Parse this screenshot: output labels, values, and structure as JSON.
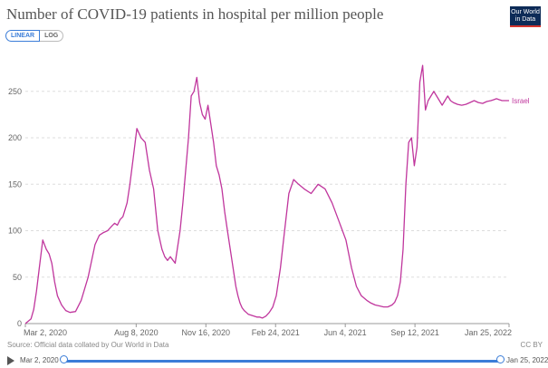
{
  "header": {
    "title": "Number of COVID-19 patients in hospital per million people",
    "logo_line1": "Our World",
    "logo_line2": "in Data"
  },
  "toggle": {
    "linear": "LINEAR",
    "log": "LOG"
  },
  "footer": {
    "source": "Source: Official data collated by Our World in Data",
    "license": "CC BY"
  },
  "timeline": {
    "start": "Mar 2, 2020",
    "end": "Jan 25, 2022"
  },
  "colors": {
    "series": "#c0369d",
    "accent": "#3b7dd8",
    "grid": "#dddddd"
  },
  "chart_data": {
    "type": "line",
    "title": "Number of COVID-19 patients in hospital per million people",
    "ylim": [
      0,
      280
    ],
    "yticks": [
      0,
      50,
      100,
      150,
      200,
      250
    ],
    "xticks": [
      {
        "label": "Mar 2, 2020",
        "t": 0
      },
      {
        "label": "Aug 8, 2020",
        "t": 159
      },
      {
        "label": "Nov 16, 2020",
        "t": 259
      },
      {
        "label": "Feb 24, 2021",
        "t": 359
      },
      {
        "label": "Jun 4, 2021",
        "t": 459
      },
      {
        "label": "Sep 12, 2021",
        "t": 559
      },
      {
        "label": "Jan 25, 2022",
        "t": 694
      }
    ],
    "series": [
      {
        "name": "Israel",
        "x": [
          0,
          8,
          12,
          16,
          20,
          25,
          30,
          34,
          38,
          42,
          46,
          52,
          58,
          64,
          72,
          80,
          90,
          100,
          106,
          112,
          118,
          124,
          128,
          132,
          136,
          140,
          146,
          150,
          155,
          160,
          166,
          172,
          178,
          184,
          190,
          196,
          200,
          204,
          208,
          212,
          215,
          218,
          222,
          226,
          230,
          234,
          238,
          242,
          246,
          250,
          254,
          258,
          262,
          266,
          270,
          274,
          278,
          282,
          286,
          290,
          294,
          298,
          302,
          305,
          308,
          311,
          314,
          317,
          320,
          324,
          328,
          332,
          336,
          340,
          345,
          350,
          355,
          360,
          366,
          372,
          378,
          385,
          392,
          400,
          410,
          420,
          430,
          440,
          450,
          460,
          468,
          475,
          482,
          490,
          496,
          502,
          508,
          514,
          520,
          526,
          530,
          534,
          538,
          542,
          546,
          550,
          554,
          558,
          562,
          566,
          570,
          574,
          578,
          582,
          586,
          590,
          594,
          598,
          602,
          606,
          610,
          614,
          620,
          626,
          632,
          638,
          644,
          650,
          656,
          662,
          668,
          672,
          676,
          680,
          684,
          686,
          688,
          690,
          692,
          694
        ],
        "values": [
          0,
          5,
          15,
          35,
          60,
          90,
          80,
          75,
          65,
          45,
          30,
          20,
          14,
          12,
          13,
          25,
          50,
          85,
          95,
          98,
          100,
          105,
          108,
          106,
          112,
          115,
          130,
          150,
          180,
          210,
          200,
          195,
          165,
          145,
          100,
          80,
          72,
          68,
          72,
          68,
          65,
          80,
          100,
          130,
          165,
          200,
          245,
          250,
          265,
          238,
          225,
          220,
          235,
          215,
          195,
          170,
          160,
          145,
          120,
          100,
          80,
          60,
          40,
          30,
          22,
          17,
          14,
          12,
          10,
          9,
          8,
          7,
          7,
          6,
          8,
          12,
          18,
          30,
          60,
          100,
          140,
          155,
          150,
          145,
          140,
          150,
          145,
          130,
          110,
          90,
          60,
          40,
          30,
          25,
          22,
          20,
          19,
          18,
          18,
          20,
          23,
          30,
          45,
          80,
          150,
          195,
          200,
          170,
          190,
          260,
          278,
          230,
          240,
          245,
          250,
          245,
          240,
          235,
          240,
          245,
          240,
          238,
          236,
          235,
          236,
          238,
          240,
          238,
          237,
          239,
          240,
          241,
          242,
          241,
          240,
          240,
          240,
          240,
          240,
          240
        ]
      }
    ]
  }
}
